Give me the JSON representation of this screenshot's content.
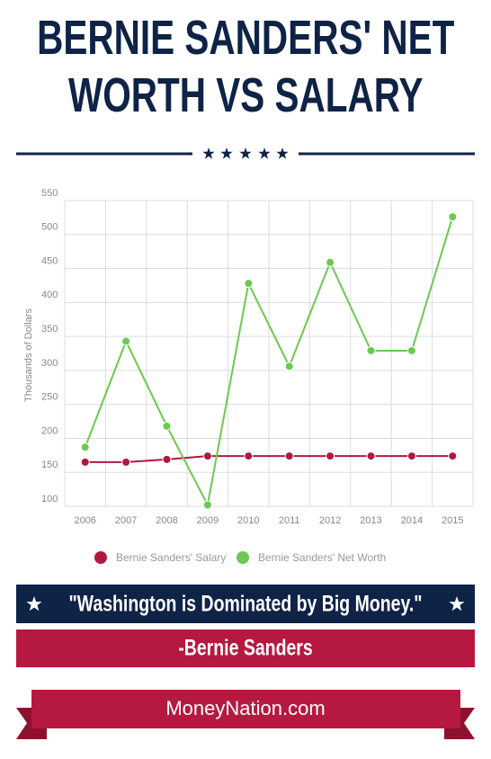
{
  "chart_data": {
    "type": "line",
    "title": "BERNIE SANDERS' NET WORTH VS SALARY",
    "y_label": "Thousands of Dollars",
    "categories": [
      "2006",
      "2007",
      "2008",
      "2009",
      "2010",
      "2011",
      "2012",
      "2013",
      "2014",
      "2015"
    ],
    "series": [
      {
        "name": "Bernie Sanders' Salary",
        "color": "#b0193e",
        "values": [
          165,
          165,
          169,
          174,
          174,
          174,
          174,
          174,
          174,
          174
        ]
      },
      {
        "name": "Bernie Sanders' Net Worth",
        "color": "#6cc94f",
        "values": [
          187,
          343,
          218,
          102,
          428,
          306,
          459,
          329,
          329,
          526
        ]
      }
    ],
    "ylim": [
      100,
      550
    ],
    "yticks": [
      100,
      150,
      200,
      250,
      300,
      350,
      400,
      450,
      500,
      550
    ],
    "grid": true,
    "legend": "bottom"
  },
  "quote": "\"Washington is Dominated by Big Money.\"",
  "attribution": "-Bernie Sanders",
  "site": "MoneyNation.com"
}
